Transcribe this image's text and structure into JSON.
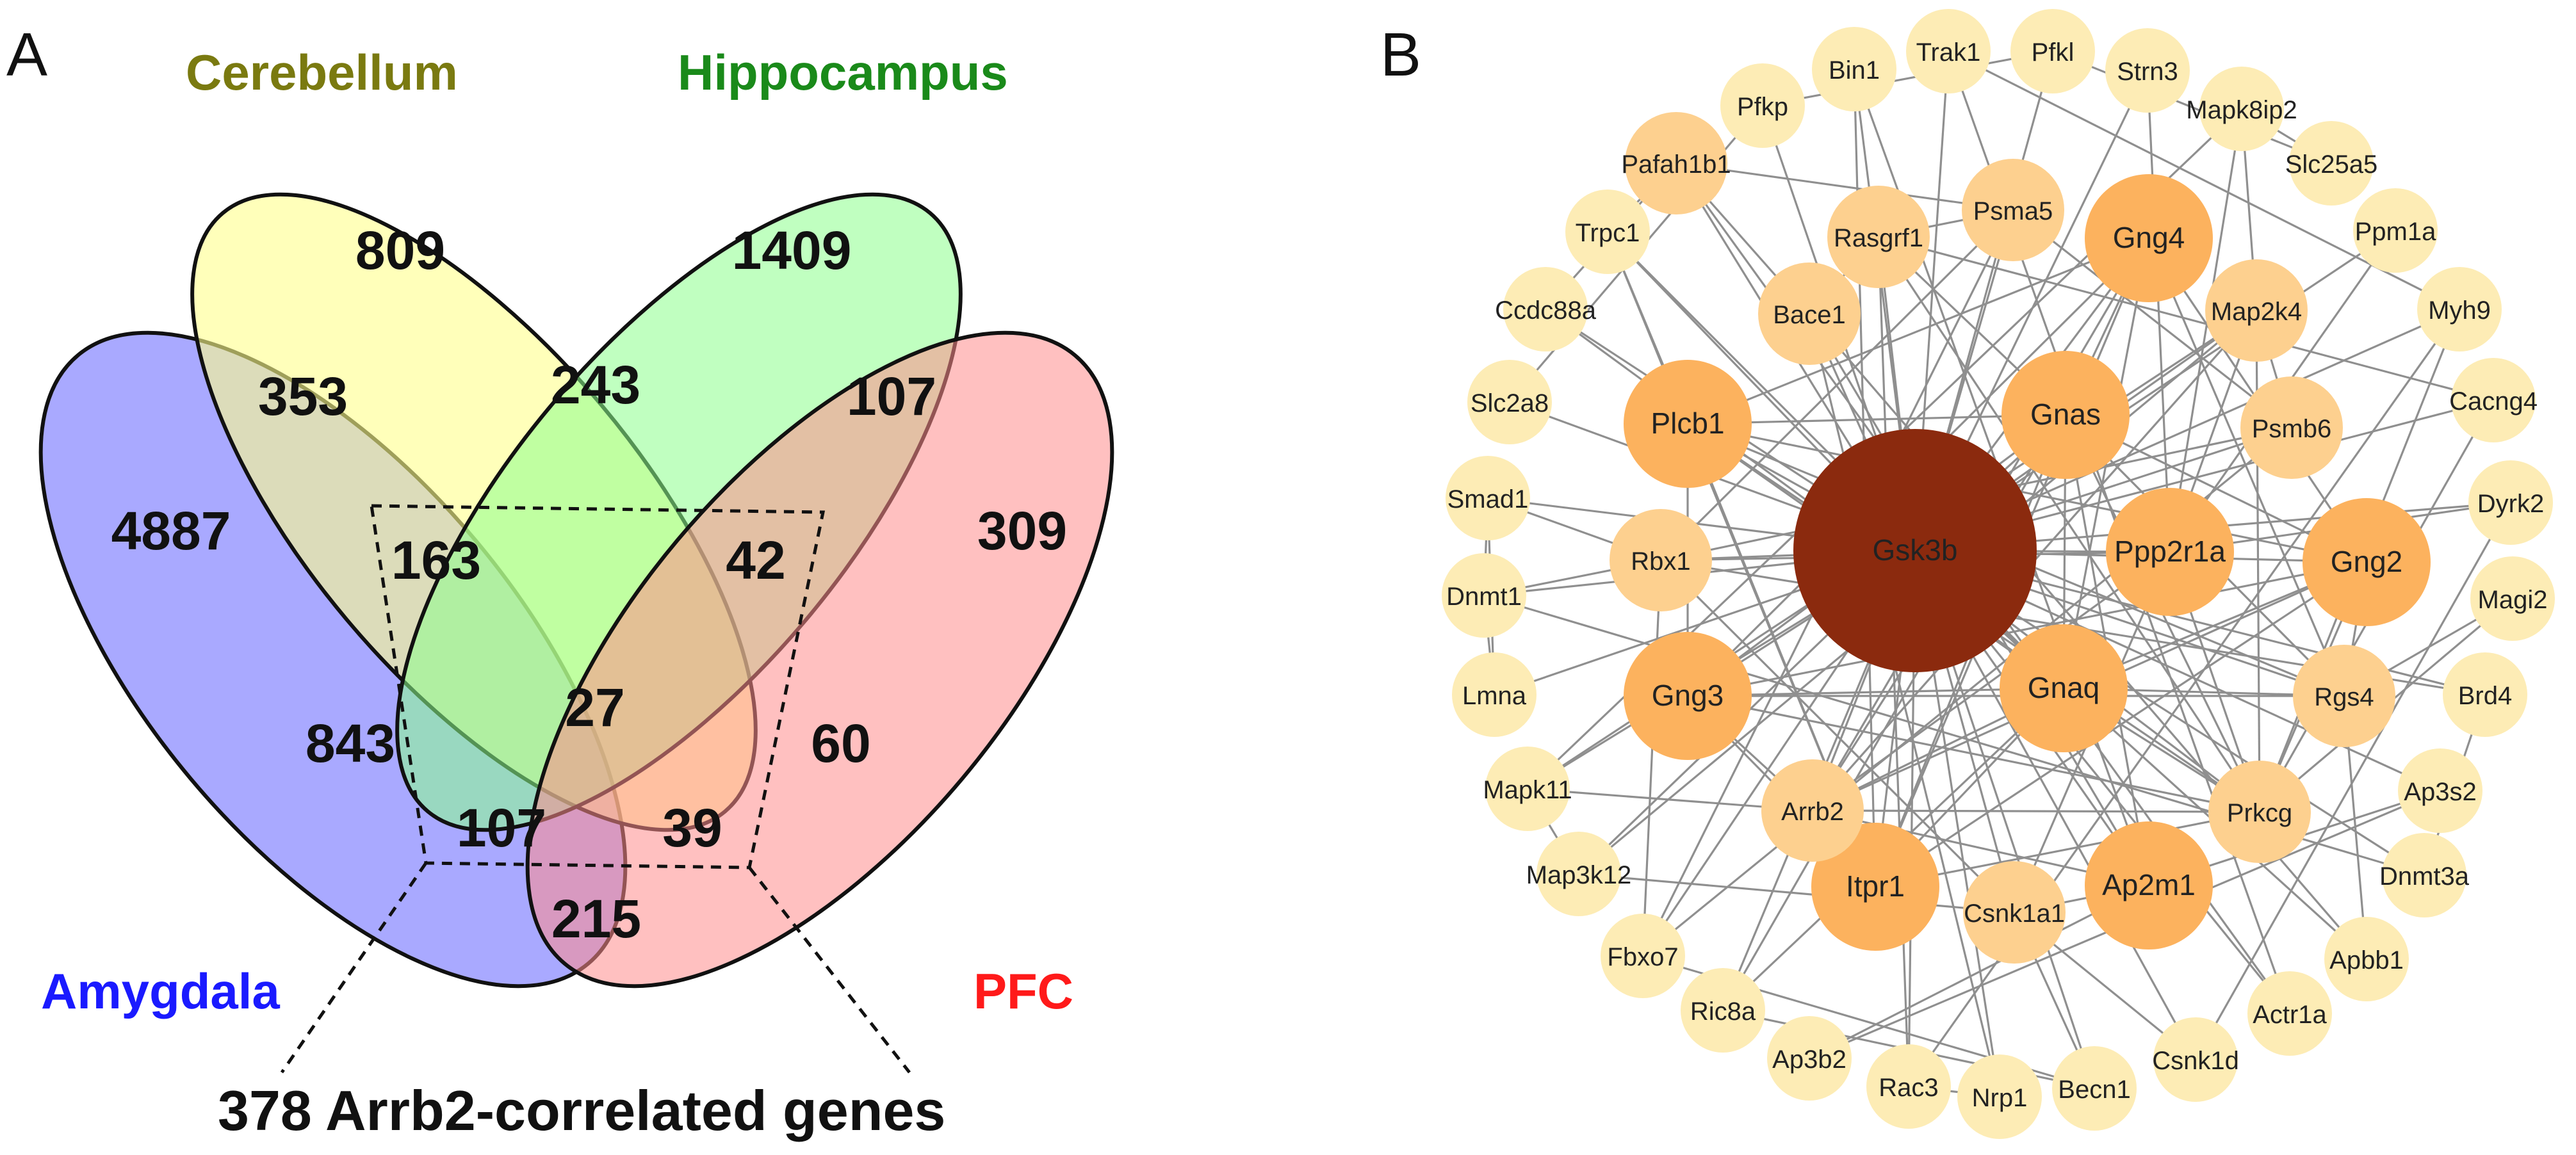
{
  "panels": {
    "a": {
      "letter": "A"
    },
    "b": {
      "letter": "B"
    }
  },
  "venn": {
    "sets": {
      "amygdala": {
        "name": "Amygdala",
        "fill": "#8c8cff",
        "label_color": "#1a1aff"
      },
      "cerebellum": {
        "name": "Cerebellum",
        "fill": "#ffff8c",
        "label_color": "#7a7a10"
      },
      "hippocampus": {
        "name": "Hippocampus",
        "fill": "#8cff8c",
        "label_color": "#1a8a1a"
      },
      "pfc": {
        "name": "PFC",
        "fill": "#ff8c8c",
        "label_color": "#ff1a1a"
      }
    },
    "regions": {
      "amygdala_only": "4887",
      "cerebellum_only": "809",
      "hippocampus_only": "1409",
      "pfc_only": "309",
      "amy_cer": "353",
      "cer_hip": "243",
      "hip_pfc": "107",
      "amy_cer_hip": "163",
      "cer_hip_pfc": "42",
      "all_four": "27",
      "amy_hip": "843",
      "cer_pfc": "60",
      "amy_hip_pfc": "107",
      "amy_cer_pfc": "39",
      "amy_pfc": "215"
    },
    "callout": "378 Arrb2-correlated genes"
  },
  "network": {
    "hub": {
      "id": "Gsk3b",
      "color": "#8b2a0e"
    },
    "nodes": [
      {
        "id": "Gsk3b",
        "tier": "hub"
      },
      {
        "id": "Gnas",
        "tier": "high"
      },
      {
        "id": "Ppp2r1a",
        "tier": "high"
      },
      {
        "id": "Gnaq",
        "tier": "high"
      },
      {
        "id": "Gng4",
        "tier": "high"
      },
      {
        "id": "Gng2",
        "tier": "high"
      },
      {
        "id": "Gng3",
        "tier": "high"
      },
      {
        "id": "Plcb1",
        "tier": "high"
      },
      {
        "id": "Itpr1",
        "tier": "high"
      },
      {
        "id": "Ap2m1",
        "tier": "high"
      },
      {
        "id": "Prkcg",
        "tier": "mid"
      },
      {
        "id": "Arrb2",
        "tier": "mid"
      },
      {
        "id": "Csnk1a1",
        "tier": "mid"
      },
      {
        "id": "Rbx1",
        "tier": "mid"
      },
      {
        "id": "Psma5",
        "tier": "mid"
      },
      {
        "id": "Rasgrf1",
        "tier": "mid"
      },
      {
        "id": "Bace1",
        "tier": "mid"
      },
      {
        "id": "Map2k4",
        "tier": "mid"
      },
      {
        "id": "Psmb6",
        "tier": "mid"
      },
      {
        "id": "Rgs4",
        "tier": "mid"
      },
      {
        "id": "Pafah1b1",
        "tier": "mid"
      },
      {
        "id": "Bin1",
        "tier": "low"
      },
      {
        "id": "Trak1",
        "tier": "low"
      },
      {
        "id": "Pfkl",
        "tier": "low"
      },
      {
        "id": "Strn3",
        "tier": "low"
      },
      {
        "id": "Mapk8ip2",
        "tier": "low"
      },
      {
        "id": "Slc25a5",
        "tier": "low"
      },
      {
        "id": "Ppm1a",
        "tier": "low"
      },
      {
        "id": "Myh9",
        "tier": "low"
      },
      {
        "id": "Cacng4",
        "tier": "low"
      },
      {
        "id": "Dyrk2",
        "tier": "low"
      },
      {
        "id": "Magi2",
        "tier": "low"
      },
      {
        "id": "Brd4",
        "tier": "low"
      },
      {
        "id": "Ap3s2",
        "tier": "low"
      },
      {
        "id": "Dnmt3a",
        "tier": "low"
      },
      {
        "id": "Apbb1",
        "tier": "low"
      },
      {
        "id": "Actr1a",
        "tier": "low"
      },
      {
        "id": "Csnk1d",
        "tier": "low"
      },
      {
        "id": "Becn1",
        "tier": "low"
      },
      {
        "id": "Nrp1",
        "tier": "low"
      },
      {
        "id": "Rac3",
        "tier": "low"
      },
      {
        "id": "Ap3b2",
        "tier": "low"
      },
      {
        "id": "Ric8a",
        "tier": "low"
      },
      {
        "id": "Fbxo7",
        "tier": "low"
      },
      {
        "id": "Map3k12",
        "tier": "low"
      },
      {
        "id": "Mapk11",
        "tier": "low"
      },
      {
        "id": "Lmna",
        "tier": "low"
      },
      {
        "id": "Dnmt1",
        "tier": "low"
      },
      {
        "id": "Smad1",
        "tier": "low"
      },
      {
        "id": "Slc2a8",
        "tier": "low"
      },
      {
        "id": "Ccdc88a",
        "tier": "low"
      },
      {
        "id": "Trpc1",
        "tier": "low"
      },
      {
        "id": "Pfkp",
        "tier": "low"
      }
    ],
    "tier_colors": {
      "hub": "#8b2a0e",
      "high": "#fcb25e",
      "mid": "#fdd08f",
      "low": "#fdecb5"
    },
    "edges": [
      [
        "Gsk3b",
        "Gnas"
      ],
      [
        "Gsk3b",
        "Ppp2r1a"
      ],
      [
        "Gsk3b",
        "Gnaq"
      ],
      [
        "Gsk3b",
        "Plcb1"
      ],
      [
        "Gsk3b",
        "Rbx1"
      ],
      [
        "Gsk3b",
        "Gng3"
      ],
      [
        "Gsk3b",
        "Itpr1"
      ],
      [
        "Gsk3b",
        "Csnk1a1"
      ],
      [
        "Gsk3b",
        "Ap2m1"
      ],
      [
        "Gsk3b",
        "Arrb2"
      ],
      [
        "Gsk3b",
        "Prkcg"
      ],
      [
        "Gsk3b",
        "Gng2"
      ],
      [
        "Gsk3b",
        "Gng4"
      ],
      [
        "Gsk3b",
        "Bace1"
      ],
      [
        "Gsk3b",
        "Psma5"
      ],
      [
        "Gsk3b",
        "Rasgrf1"
      ],
      [
        "Gsk3b",
        "Map2k4"
      ],
      [
        "Gsk3b",
        "Psmb6"
      ],
      [
        "Gsk3b",
        "Rgs4"
      ],
      [
        "Gsk3b",
        "Pafah1b1"
      ],
      [
        "Gsk3b",
        "Trpc1"
      ],
      [
        "Gsk3b",
        "Ccdc88a"
      ],
      [
        "Gsk3b",
        "Smad1"
      ],
      [
        "Gsk3b",
        "Dnmt1"
      ],
      [
        "Gsk3b",
        "Lmna"
      ],
      [
        "Gsk3b",
        "Mapk11"
      ],
      [
        "Gsk3b",
        "Map3k12"
      ],
      [
        "Gsk3b",
        "Fbxo7"
      ],
      [
        "Gsk3b",
        "Ric8a"
      ],
      [
        "Gsk3b",
        "Rac3"
      ],
      [
        "Gsk3b",
        "Nrp1"
      ],
      [
        "Gsk3b",
        "Becn1"
      ],
      [
        "Gsk3b",
        "Csnk1d"
      ],
      [
        "Gsk3b",
        "Actr1a"
      ],
      [
        "Gsk3b",
        "Apbb1"
      ],
      [
        "Gsk3b",
        "Dnmt3a"
      ],
      [
        "Gsk3b",
        "Ap3s2"
      ],
      [
        "Gsk3b",
        "Brd4"
      ],
      [
        "Gsk3b",
        "Myh9"
      ],
      [
        "Gsk3b",
        "Ppm1a"
      ],
      [
        "Gsk3b",
        "Strn3"
      ],
      [
        "Gsk3b",
        "Pfkl"
      ],
      [
        "Gsk3b",
        "Trak1"
      ],
      [
        "Gsk3b",
        "Bin1"
      ],
      [
        "Gsk3b",
        "Pfkp"
      ],
      [
        "Gsk3b",
        "Slc2a8"
      ],
      [
        "Gsk3b",
        "Cacng4"
      ],
      [
        "Gsk3b",
        "Dyrk2"
      ],
      [
        "Gnas",
        "Gng4"
      ],
      [
        "Gnas",
        "Gng2"
      ],
      [
        "Gnas",
        "Gng3"
      ],
      [
        "Gnas",
        "Gnaq"
      ],
      [
        "Gnas",
        "Plcb1"
      ],
      [
        "Gnas",
        "Rgs4"
      ],
      [
        "Gnas",
        "Ap2m1"
      ],
      [
        "Gnas",
        "Arrb2"
      ],
      [
        "Gnas",
        "Prkcg"
      ],
      [
        "Gnas",
        "Itpr1"
      ],
      [
        "Gnas",
        "Rasgrf1"
      ],
      [
        "Gnas",
        "Ric8a"
      ],
      [
        "Gnaq",
        "Gng4"
      ],
      [
        "Gnaq",
        "Gng2"
      ],
      [
        "Gnaq",
        "Gng3"
      ],
      [
        "Gnaq",
        "Plcb1"
      ],
      [
        "Gnaq",
        "Rgs4"
      ],
      [
        "Gnaq",
        "Itpr1"
      ],
      [
        "Gnaq",
        "Prkcg"
      ],
      [
        "Gnaq",
        "Arrb2"
      ],
      [
        "Gnaq",
        "Ric8a"
      ],
      [
        "Gnaq",
        "Trpc1"
      ],
      [
        "Gng4",
        "Gng2"
      ],
      [
        "Gng4",
        "Gng3"
      ],
      [
        "Gng4",
        "Plcb1"
      ],
      [
        "Gng4",
        "Rgs4"
      ],
      [
        "Gng4",
        "Arrb2"
      ],
      [
        "Gng4",
        "Itpr1"
      ],
      [
        "Gng2",
        "Gng3"
      ],
      [
        "Gng2",
        "Plcb1"
      ],
      [
        "Gng2",
        "Rgs4"
      ],
      [
        "Gng2",
        "Arrb2"
      ],
      [
        "Gng2",
        "Prkcg"
      ],
      [
        "Gng2",
        "Itpr1"
      ],
      [
        "Gng3",
        "Plcb1"
      ],
      [
        "Gng3",
        "Arrb2"
      ],
      [
        "Gng3",
        "Rgs4"
      ],
      [
        "Gng3",
        "Itpr1"
      ],
      [
        "Gng3",
        "Prkcg"
      ],
      [
        "Plcb1",
        "Itpr1"
      ],
      [
        "Plcb1",
        "Prkcg"
      ],
      [
        "Plcb1",
        "Trpc1"
      ],
      [
        "Plcb1",
        "Rgs4"
      ],
      [
        "Itpr1",
        "Prkcg"
      ],
      [
        "Itpr1",
        "Trpc1"
      ],
      [
        "Itpr1",
        "Bin1"
      ],
      [
        "Ap2m1",
        "Arrb2"
      ],
      [
        "Ap2m1",
        "Bin1"
      ],
      [
        "Ap2m1",
        "Ap3s2"
      ],
      [
        "Ap2m1",
        "Ap3b2"
      ],
      [
        "Ap2m1",
        "Bace1"
      ],
      [
        "Ap2m1",
        "Csnk1a1"
      ],
      [
        "Arrb2",
        "Map2k4"
      ],
      [
        "Arrb2",
        "Mapk11"
      ],
      [
        "Arrb2",
        "Prkcg"
      ],
      [
        "Arrb2",
        "Ppp2r1a"
      ],
      [
        "Ppp2r1a",
        "Prkcg"
      ],
      [
        "Ppp2r1a",
        "Csnk1a1"
      ],
      [
        "Ppp2r1a",
        "Strn3"
      ],
      [
        "Ppp2r1a",
        "Map2k4"
      ],
      [
        "Ppp2r1a",
        "Rbx1"
      ],
      [
        "Ppp2r1a",
        "Ppm1a"
      ],
      [
        "Ppp2r1a",
        "Mapk8ip2"
      ],
      [
        "Ppp2r1a",
        "Dyrk2"
      ],
      [
        "Csnk1a1",
        "Csnk1d"
      ],
      [
        "Csnk1a1",
        "Rbx1"
      ],
      [
        "Csnk1a1",
        "Becn1"
      ],
      [
        "Csnk1a1",
        "Map3k12"
      ],
      [
        "Rbx1",
        "Psma5"
      ],
      [
        "Rbx1",
        "Psmb6"
      ],
      [
        "Rbx1",
        "Fbxo7"
      ],
      [
        "Rbx1",
        "Smad1"
      ],
      [
        "Rbx1",
        "Dnmt1"
      ],
      [
        "Psma5",
        "Psmb6"
      ],
      [
        "Psma5",
        "Rasgrf1"
      ],
      [
        "Psma5",
        "Fbxo7"
      ],
      [
        "Psma5",
        "Pafah1b1"
      ],
      [
        "Psmb6",
        "Map2k4"
      ],
      [
        "Psmb6",
        "Fbxo7"
      ],
      [
        "Map2k4",
        "Mapk8ip2"
      ],
      [
        "Map2k4",
        "Mapk11"
      ],
      [
        "Map2k4",
        "Map3k12"
      ],
      [
        "Map2k4",
        "Prkcg"
      ],
      [
        "Mapk11",
        "Map3k12"
      ],
      [
        "Mapk11",
        "Mapk8ip2"
      ],
      [
        "Bace1",
        "Pafah1b1"
      ],
      [
        "Bace1",
        "Apbb1"
      ],
      [
        "Bace1",
        "Rasgrf1"
      ],
      [
        "Bace1",
        "Nrp1"
      ],
      [
        "Pafah1b1",
        "Actr1a"
      ],
      [
        "Pafah1b1",
        "Trpc1"
      ],
      [
        "Pafah1b1",
        "Ccdc88a"
      ],
      [
        "Rasgrf1",
        "Rac3"
      ],
      [
        "Rasgrf1",
        "Prkcg"
      ],
      [
        "Rasgrf1",
        "Cacng4"
      ],
      [
        "Prkcg",
        "Cacng4"
      ],
      [
        "Prkcg",
        "Myh9"
      ],
      [
        "Prkcg",
        "Magi2"
      ],
      [
        "Dnmt1",
        "Dnmt3a"
      ],
      [
        "Dnmt1",
        "Smad1"
      ],
      [
        "Dnmt1",
        "Lmna"
      ],
      [
        "Dnmt3a",
        "Brd4"
      ],
      [
        "Becn1",
        "Fbxo7"
      ],
      [
        "Becn1",
        "Ric8a"
      ],
      [
        "Csnk1d",
        "Dyrk2"
      ],
      [
        "Trak1",
        "Myh9"
      ],
      [
        "Trak1",
        "Actr1a"
      ],
      [
        "Pfkl",
        "Pfkp"
      ],
      [
        "Pfkl",
        "Slc25a5"
      ],
      [
        "Pfkp",
        "Slc2a8"
      ],
      [
        "Lmna",
        "Smad1"
      ],
      [
        "Brd4",
        "Rbx1"
      ],
      [
        "Ap3s2",
        "Ap3b2"
      ],
      [
        "Apbb1",
        "Rgs4"
      ],
      [
        "Magi2",
        "Rgs4"
      ],
      [
        "Rac3",
        "Myh9"
      ],
      [
        "Nrp1",
        "Rac3"
      ],
      [
        "Ccdc88a",
        "Gnaq"
      ],
      [
        "Slc25a5",
        "Mapk8ip2"
      ]
    ]
  }
}
